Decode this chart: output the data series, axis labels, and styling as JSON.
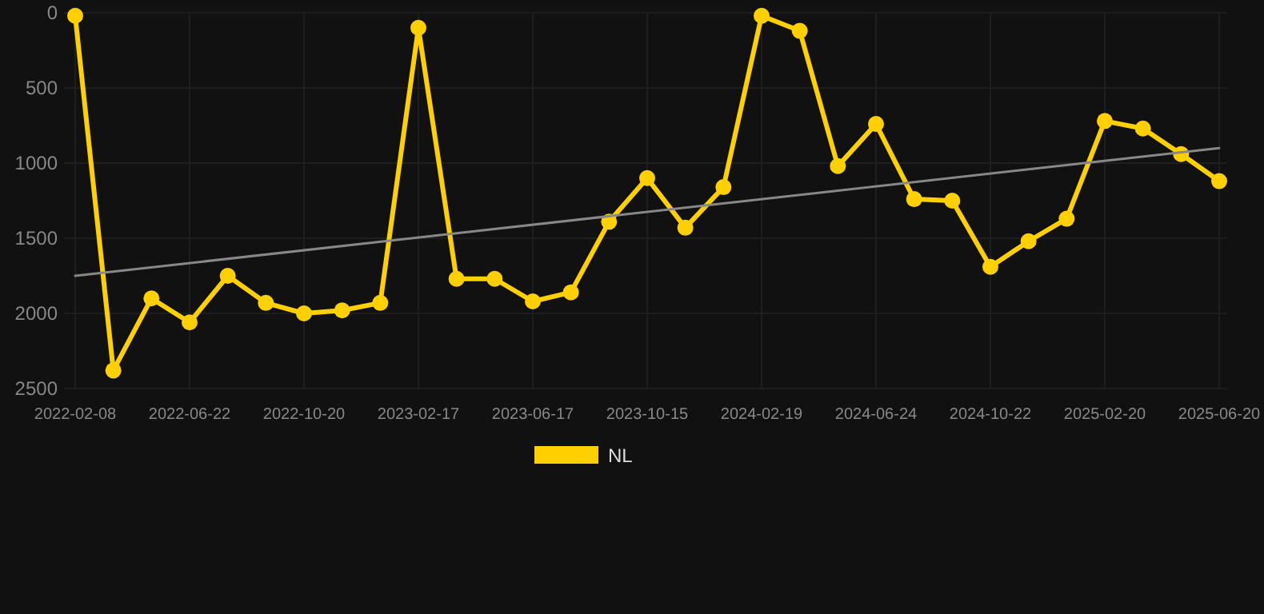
{
  "chart_data": {
    "type": "line",
    "categories": [
      "2022-02-08",
      null,
      null,
      "2022-06-22",
      null,
      null,
      "2022-10-20",
      null,
      null,
      "2023-02-17",
      null,
      null,
      "2023-06-17",
      null,
      null,
      "2023-10-15",
      null,
      null,
      "2024-02-19",
      null,
      null,
      "2024-06-24",
      null,
      null,
      "2024-10-22",
      null,
      null,
      "2025-02-20",
      null,
      null,
      "2025-06-20"
    ],
    "series": [
      {
        "name": "NL",
        "color": "#ffd000",
        "values": [
          20,
          2380,
          1900,
          2060,
          1750,
          1930,
          2000,
          1980,
          1930,
          100,
          1770,
          1770,
          1920,
          1860,
          1390,
          1100,
          1430,
          1160,
          20,
          120,
          1020,
          740,
          1240,
          1250,
          1690,
          1520,
          1370,
          720,
          770,
          940,
          1120
        ]
      },
      {
        "type": "line",
        "color": "#888888",
        "values": [
          1750,
          null,
          null,
          null,
          null,
          null,
          null,
          null,
          null,
          null,
          null,
          null,
          null,
          null,
          null,
          null,
          null,
          null,
          null,
          null,
          null,
          null,
          null,
          null,
          null,
          null,
          null,
          null,
          null,
          null,
          900
        ],
        "marker": "none"
      }
    ],
    "ylim": [
      2500,
      0
    ],
    "yticks": [
      0,
      500,
      1000,
      1500,
      2000,
      2500
    ],
    "grid": true,
    "legend": "bottom",
    "marker": "circle"
  }
}
